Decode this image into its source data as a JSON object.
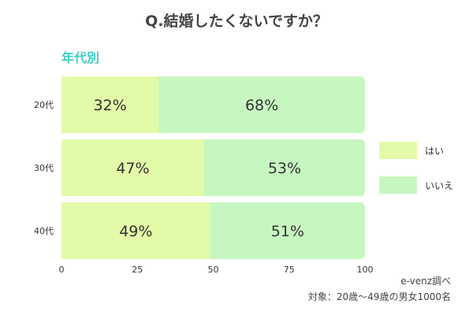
{
  "chart_data": {
    "type": "bar",
    "orientation": "horizontal",
    "stacked": true,
    "title": "Q.結婚したくないですか？",
    "subtitle": "年代別",
    "categories": [
      "20代",
      "30代",
      "40代"
    ],
    "series": [
      {
        "name": "はい",
        "values": [
          32,
          47,
          49
        ],
        "color": "#e2fba8"
      },
      {
        "name": "いいえ",
        "values": [
          68,
          53,
          51
        ],
        "color": "#c7f7c1"
      }
    ],
    "value_suffix": "%",
    "xlim": [
      0,
      100
    ],
    "xticks": [
      0,
      25,
      50,
      75,
      100
    ],
    "legend_position": "right",
    "grid": false
  },
  "footer": {
    "source": "e-venz調べ",
    "target": "対象：20歳〜49歳の男女1000名"
  }
}
